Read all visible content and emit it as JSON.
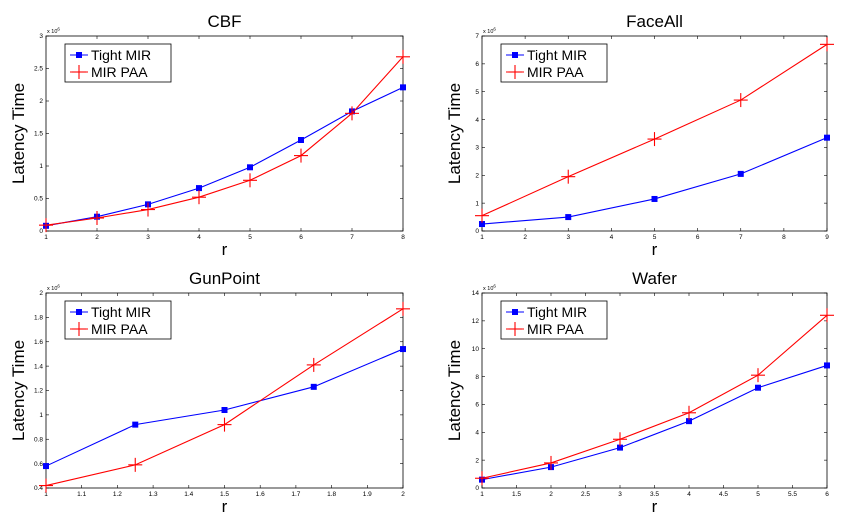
{
  "chart_data": [
    {
      "type": "line",
      "title": "CBF",
      "xlabel": "r",
      "ylabel": "Latency Time",
      "y_multiplier": "x 10^6",
      "xlim": [
        1,
        8
      ],
      "ylim": [
        0,
        3
      ],
      "xticks": [
        1,
        2,
        3,
        4,
        5,
        6,
        7,
        8
      ],
      "xticklabels": [
        "1",
        "2",
        "3",
        "4",
        "5",
        "6",
        "7",
        "8"
      ],
      "yticks": [
        0,
        0.5,
        1,
        1.5,
        2,
        2.5,
        3
      ],
      "yticklabels": [
        "0",
        "0.5",
        "1",
        "1.5",
        "2",
        "2.5",
        "3"
      ],
      "legend_position": "top-left",
      "series": [
        {
          "name": "Tight MIR",
          "color": "#0000ff",
          "marker": "square",
          "x": [
            1,
            2,
            3,
            4,
            5,
            6,
            7,
            8
          ],
          "values": [
            0.08,
            0.22,
            0.41,
            0.66,
            0.98,
            1.4,
            1.84,
            2.21
          ]
        },
        {
          "name": "MIR PAA",
          "color": "#ff0000",
          "marker": "plus",
          "x": [
            1,
            2,
            3,
            4,
            5,
            6,
            7,
            8
          ],
          "values": [
            0.09,
            0.2,
            0.33,
            0.52,
            0.78,
            1.16,
            1.81,
            2.68
          ]
        }
      ]
    },
    {
      "type": "line",
      "title": "FaceAll",
      "xlabel": "r",
      "ylabel": "Latency Time",
      "y_multiplier": "x 10^6",
      "xlim": [
        1,
        9
      ],
      "ylim": [
        0,
        7
      ],
      "xticks": [
        1,
        2,
        3,
        4,
        5,
        6,
        7,
        8,
        9
      ],
      "xticklabels": [
        "1",
        "2",
        "3",
        "4",
        "5",
        "6",
        "7",
        "8",
        "9"
      ],
      "yticks": [
        0,
        1,
        2,
        3,
        4,
        5,
        6,
        7
      ],
      "yticklabels": [
        "0",
        "1",
        "2",
        "3",
        "4",
        "5",
        "6",
        "7"
      ],
      "legend_position": "top-left",
      "series": [
        {
          "name": "Tight MIR",
          "color": "#0000ff",
          "marker": "square",
          "x": [
            1,
            3,
            5,
            7,
            9
          ],
          "values": [
            0.25,
            0.5,
            1.15,
            2.05,
            3.35
          ]
        },
        {
          "name": "MIR PAA",
          "color": "#ff0000",
          "marker": "plus",
          "x": [
            1,
            3,
            5,
            7,
            9
          ],
          "values": [
            0.55,
            1.95,
            3.3,
            4.7,
            6.7
          ]
        }
      ]
    },
    {
      "type": "line",
      "title": "GunPoint",
      "xlabel": "r",
      "ylabel": "Latency Time",
      "y_multiplier": "x 10^6",
      "xlim": [
        1,
        2
      ],
      "ylim": [
        0.4,
        2
      ],
      "xticks": [
        1,
        1.1,
        1.2,
        1.3,
        1.4,
        1.5,
        1.6,
        1.7,
        1.8,
        1.9,
        2
      ],
      "xticklabels": [
        "1",
        "1.1",
        "1.2",
        "1.3",
        "1.4",
        "1.5",
        "1.6",
        "1.7",
        "1.8",
        "1.9",
        "2"
      ],
      "yticks": [
        0.4,
        0.6,
        0.8,
        1,
        1.2,
        1.4,
        1.6,
        1.8,
        2
      ],
      "yticklabels": [
        "0.4",
        "0.6",
        "0.8",
        "1",
        "1.2",
        "1.4",
        "1.6",
        "1.8",
        "2"
      ],
      "legend_position": "top-left",
      "series": [
        {
          "name": "Tight MIR",
          "color": "#0000ff",
          "marker": "square",
          "x": [
            1,
            1.25,
            1.5,
            1.75,
            2
          ],
          "values": [
            0.58,
            0.92,
            1.04,
            1.23,
            1.54
          ]
        },
        {
          "name": "MIR PAA",
          "color": "#ff0000",
          "marker": "plus",
          "x": [
            1,
            1.25,
            1.5,
            1.75,
            2
          ],
          "values": [
            0.42,
            0.59,
            0.92,
            1.41,
            1.87
          ]
        }
      ]
    },
    {
      "type": "line",
      "title": "Wafer",
      "xlabel": "r",
      "ylabel": "Latency Time",
      "y_multiplier": "x 10^6",
      "xlim": [
        1,
        6
      ],
      "ylim": [
        0,
        14
      ],
      "xticks": [
        1,
        1.5,
        2,
        2.5,
        3,
        3.5,
        4,
        4.5,
        5,
        5.5,
        6
      ],
      "xticklabels": [
        "1",
        "1.5",
        "2",
        "2.5",
        "3",
        "3.5",
        "4",
        "4.5",
        "5",
        "5.5",
        "6"
      ],
      "yticks": [
        0,
        2,
        4,
        6,
        8,
        10,
        12,
        14
      ],
      "yticklabels": [
        "0",
        "2",
        "4",
        "6",
        "8",
        "10",
        "12",
        "14"
      ],
      "legend_position": "top-left",
      "series": [
        {
          "name": "Tight MIR",
          "color": "#0000ff",
          "marker": "square",
          "x": [
            1,
            2,
            3,
            4,
            5,
            6
          ],
          "values": [
            0.6,
            1.5,
            2.9,
            4.8,
            7.2,
            8.8
          ]
        },
        {
          "name": "MIR PAA",
          "color": "#ff0000",
          "marker": "plus",
          "x": [
            1,
            2,
            3,
            4,
            5,
            6
          ],
          "values": [
            0.7,
            1.8,
            3.5,
            5.4,
            8.1,
            12.4
          ]
        }
      ]
    }
  ]
}
